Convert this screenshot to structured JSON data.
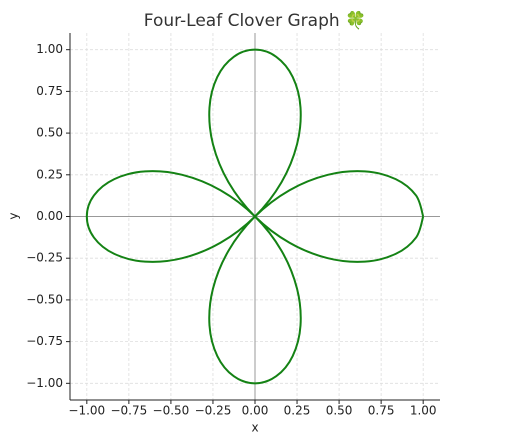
{
  "chart_data": {
    "type": "line",
    "title": "Four-Leaf Clover Graph 🍀",
    "xlabel": "x",
    "ylabel": "y",
    "xlim": [
      -1.1,
      1.1
    ],
    "ylim": [
      -1.1,
      1.1
    ],
    "xticks": [
      {
        "value": -1,
        "label": "−1.00"
      },
      {
        "value": -0.75,
        "label": "−0.75"
      },
      {
        "value": -0.5,
        "label": "−0.50"
      },
      {
        "value": -0.25,
        "label": "−0.25"
      },
      {
        "value": 0,
        "label": "0.00"
      },
      {
        "value": 0.25,
        "label": "0.25"
      },
      {
        "value": 0.5,
        "label": "0.50"
      },
      {
        "value": 0.75,
        "label": "0.75"
      },
      {
        "value": 1,
        "label": "1.00"
      }
    ],
    "yticks": [
      {
        "value": -1,
        "label": "−1.00"
      },
      {
        "value": -0.75,
        "label": "−0.75"
      },
      {
        "value": -0.5,
        "label": "−0.50"
      },
      {
        "value": -0.25,
        "label": "−0.25"
      },
      {
        "value": 0,
        "label": "0.00"
      },
      {
        "value": 0.25,
        "label": "0.25"
      },
      {
        "value": 0.5,
        "label": "0.50"
      },
      {
        "value": 0.75,
        "label": "0.75"
      },
      {
        "value": 1,
        "label": "1.00"
      }
    ],
    "grid": true,
    "zero_lines": true,
    "series": [
      {
        "color": "#148214",
        "x": [
          1,
          0.9576,
          0.8365,
          0.6533,
          0.433,
          0.2053,
          0,
          -0.1576,
          -0.25,
          -0.2706,
          -0.2241,
          -0.1261,
          0,
          0.1261,
          0.2241,
          0.2706,
          0.25,
          0.1576,
          0,
          -0.2053,
          -0.433,
          -0.6533,
          -0.8365,
          -0.9576,
          -1,
          -0.9576,
          -0.8365,
          -0.6533,
          -0.433,
          -0.2053,
          0,
          0.1576,
          0.25,
          0.2706,
          0.2241,
          0.1261,
          0,
          -0.1261,
          -0.2241,
          -0.2706,
          -0.25,
          -0.1576,
          0,
          0.2053,
          0.433,
          0.6533,
          0.8365,
          0.9576,
          1
        ],
        "y": [
          0,
          0.1261,
          0.2241,
          0.2706,
          0.25,
          0.1576,
          0,
          -0.2053,
          -0.433,
          -0.6533,
          -0.8365,
          -0.9576,
          -1,
          -0.9576,
          -0.8365,
          -0.6533,
          -0.433,
          -0.2053,
          0,
          0.1576,
          0.25,
          0.2706,
          0.2241,
          0.1261,
          0,
          -0.1261,
          -0.2241,
          -0.2706,
          -0.25,
          -0.1576,
          0,
          0.2053,
          0.433,
          0.6533,
          0.8365,
          0.9576,
          1,
          0.9576,
          0.8365,
          0.6533,
          0.433,
          0.2053,
          0,
          -0.1576,
          -0.25,
          -0.2706,
          -0.2241,
          -0.1261,
          0
        ]
      }
    ]
  }
}
